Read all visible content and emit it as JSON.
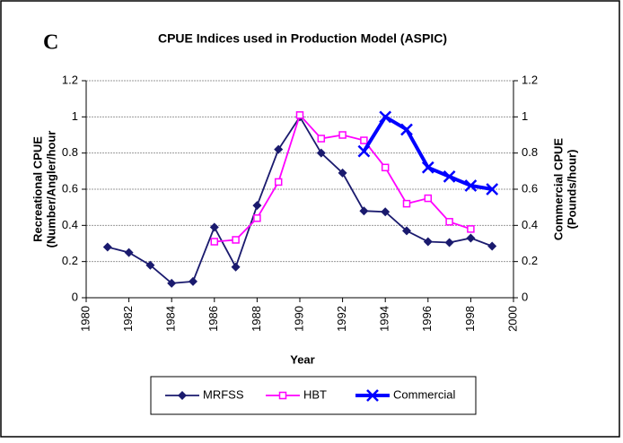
{
  "chart_data": {
    "type": "line",
    "panel_label": "C",
    "title": "CPUE Indices used in Production Model (ASPIC)",
    "x_label": "Year",
    "y_label": [
      "Recreational CPUE",
      "(Number/Angler/hour"
    ],
    "y2_label": [
      "Commercial CPUE",
      "(Pounds/hour)"
    ],
    "x": [
      1981,
      1982,
      1983,
      1984,
      1985,
      1986,
      1987,
      1988,
      1989,
      1990,
      1991,
      1992,
      1993,
      1994,
      1995,
      1996,
      1997,
      1998,
      1999
    ],
    "xlim": [
      1980,
      2000
    ],
    "xticks": [
      1980,
      1982,
      1984,
      1986,
      1988,
      1990,
      1992,
      1994,
      1996,
      1998,
      2000
    ],
    "ylim": [
      0,
      1.2
    ],
    "yticks": [
      0,
      0.2,
      0.4,
      0.6,
      0.8,
      1,
      1.2
    ],
    "y2lim": [
      0,
      1.2
    ],
    "y2ticks": [
      0,
      0.2,
      0.4,
      0.6,
      0.8,
      1,
      1.2
    ],
    "grid": true,
    "legend": "bottom",
    "series": [
      {
        "name": "MRFSS",
        "color": "#1a1a6e",
        "marker": "diamond",
        "values": [
          0.28,
          0.25,
          0.18,
          0.08,
          0.09,
          0.39,
          0.17,
          0.51,
          0.82,
          1.0,
          0.8,
          0.69,
          0.48,
          0.475,
          0.37,
          0.31,
          0.305,
          0.33,
          0.285
        ]
      },
      {
        "name": "HBT",
        "color": "#ff00ff",
        "marker": "square",
        "values": [
          null,
          null,
          null,
          null,
          null,
          0.31,
          0.32,
          0.44,
          0.64,
          1.01,
          0.88,
          0.9,
          0.87,
          0.72,
          0.52,
          0.55,
          0.42,
          0.38,
          null
        ]
      },
      {
        "name": "Commercial",
        "color": "#0000ff",
        "marker": "x",
        "axis": "y2",
        "values": [
          null,
          null,
          null,
          null,
          null,
          null,
          null,
          null,
          null,
          null,
          null,
          null,
          0.81,
          1.0,
          0.93,
          0.72,
          0.67,
          0.62,
          0.6
        ]
      }
    ]
  }
}
